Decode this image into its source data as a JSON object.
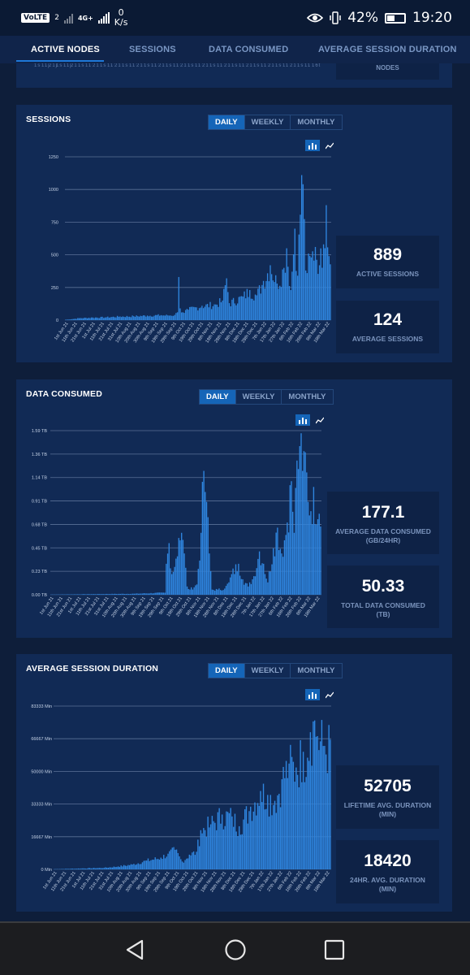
{
  "status_bar": {
    "volte": "VoLTE",
    "sim_badge": "2",
    "network": "4G+",
    "speed_value": "0",
    "speed_unit": "K/s",
    "battery": "42%",
    "time": "19:20"
  },
  "tabs": [
    "ACTIVE NODES",
    "SESSIONS",
    "DATA CONSUMED",
    "AVERAGE SESSION DURATION"
  ],
  "top_card": {
    "tick_labels": [
      "1s",
      "11j",
      "21j",
      "1s",
      "11j",
      "21",
      "1s",
      "11",
      "21",
      "1s",
      "11",
      "21",
      "1s",
      "11",
      "21",
      "1s",
      "11",
      "21",
      "1s",
      "11",
      "21",
      "1s",
      "11",
      "21",
      "1s",
      "11",
      "21",
      "1s",
      "11",
      "21",
      "1s",
      "11",
      "21",
      "1s",
      "11",
      "21",
      "1s",
      "11",
      "16t"
    ],
    "stat_label": "NODES"
  },
  "range_options": [
    "DAILY",
    "WEEKLY",
    "MONTHLY"
  ],
  "panels": {
    "sessions": {
      "title": "SESSIONS",
      "stats": [
        {
          "value": "889",
          "label": "ACTIVE SESSIONS"
        },
        {
          "value": "124",
          "label": "AVERAGE SESSIONS"
        }
      ]
    },
    "data": {
      "title": "DATA CONSUMED",
      "stats": [
        {
          "value": "177.1",
          "label": "AVERAGE DATA CONSUMED (GB/24HR)"
        },
        {
          "value": "50.33",
          "label": "TOTAL DATA CONSUMED (TB)"
        }
      ]
    },
    "duration": {
      "title": "AVERAGE SESSION DURATION",
      "stats": [
        {
          "value": "52705",
          "label": "LIFETIME AVG. DURATION (MIN)"
        },
        {
          "value": "18420",
          "label": "24HR. AVG. DURATION (MIN)"
        }
      ]
    }
  },
  "chart_data": [
    {
      "type": "bar",
      "title": "SESSIONS",
      "x_tick_labels": [
        "1st Jun 21",
        "11th Jun 21",
        "21st Jun 21",
        "1st Jul 21",
        "11th Jul 21",
        "21st Jul 21",
        "31st Jul 21",
        "10th Aug 21",
        "20th Aug 21",
        "30th Aug 21",
        "9th Sep 21",
        "19th Sep 21",
        "29th Sep 21",
        "9th Oct 21",
        "19th Oct 21",
        "29th Oct 21",
        "8th Nov 21",
        "18th Nov 21",
        "28th Nov 21",
        "8th Dec 21",
        "18th Dec 21",
        "28th Dec 21",
        "7th Jan 22",
        "17th Jan 22",
        "27th Jan 22",
        "6th Feb 22",
        "16th Feb 22",
        "26th Feb 22",
        "8th Mar 22",
        "18th Mar 22"
      ],
      "y_ticks": [
        "0",
        "250",
        "500",
        "750",
        "1000",
        "1250"
      ],
      "ylim": [
        0,
        1250
      ],
      "grid": true,
      "anchors": [
        [
          0,
          3
        ],
        [
          5,
          8
        ],
        [
          10,
          15
        ],
        [
          20,
          20
        ],
        [
          30,
          22
        ],
        [
          40,
          28
        ],
        [
          50,
          30
        ],
        [
          60,
          35
        ],
        [
          70,
          38
        ],
        [
          75,
          36
        ],
        [
          80,
          40
        ],
        [
          82,
          60
        ],
        [
          83,
          330
        ],
        [
          84,
          90
        ],
        [
          86,
          60
        ],
        [
          90,
          80
        ],
        [
          100,
          110
        ],
        [
          110,
          120
        ],
        [
          115,
          150
        ],
        [
          118,
          320
        ],
        [
          120,
          130
        ],
        [
          130,
          180
        ],
        [
          135,
          230
        ],
        [
          140,
          190
        ],
        [
          145,
          300
        ],
        [
          150,
          420
        ],
        [
          155,
          280
        ],
        [
          160,
          400
        ],
        [
          162,
          550
        ],
        [
          165,
          230
        ],
        [
          168,
          700
        ],
        [
          170,
          340
        ],
        [
          173,
          1110
        ],
        [
          174,
          1040
        ],
        [
          176,
          380
        ],
        [
          180,
          480
        ],
        [
          183,
          560
        ],
        [
          186,
          420
        ],
        [
          189,
          580
        ],
        [
          191,
          880
        ],
        [
          193,
          490
        ]
      ]
    },
    {
      "type": "bar",
      "title": "DATA CONSUMED",
      "x_tick_labels": [
        "1st Jun 21",
        "11th Jun 21",
        "21st Jun 21",
        "1st Jul 21",
        "11th Jul 21",
        "21st Jul 21",
        "31st Jul 21",
        "10th Aug 21",
        "20th Aug 21",
        "30th Aug 21",
        "9th Sep 21",
        "19th Sep 21",
        "29th Sep 21",
        "9th Oct 21",
        "19th Oct 21",
        "29th Oct 21",
        "8th Nov 21",
        "18th Nov 21",
        "28th Nov 21",
        "8th Dec 21",
        "18th Dec 21",
        "28th Dec 21",
        "7th Jan 22",
        "17th Jan 22",
        "27th Jan 22",
        "6th Feb 22",
        "16th Feb 22",
        "26th Feb 22",
        "8th Mar 22",
        "18th Mar 22"
      ],
      "y_ticks": [
        "0.00 TB",
        "0.23 TB",
        "0.45 TB",
        "0.68 TB",
        "0.91 TB",
        "1.14 TB",
        "1.36 TB",
        "1.59 TB"
      ],
      "ylim": [
        0,
        1.59
      ],
      "grid": true,
      "anchors": [
        [
          0,
          0.002
        ],
        [
          60,
          0.01
        ],
        [
          82,
          0.02
        ],
        [
          83,
          0.3
        ],
        [
          85,
          0.5
        ],
        [
          87,
          0.2
        ],
        [
          90,
          0.35
        ],
        [
          92,
          0.55
        ],
        [
          94,
          0.6
        ],
        [
          96,
          0.4
        ],
        [
          98,
          0.08
        ],
        [
          100,
          0.05
        ],
        [
          105,
          0.1
        ],
        [
          108,
          0.6
        ],
        [
          110,
          1.2
        ],
        [
          112,
          0.9
        ],
        [
          114,
          0.4
        ],
        [
          116,
          0.05
        ],
        [
          120,
          0.05
        ],
        [
          125,
          0.06
        ],
        [
          128,
          0.12
        ],
        [
          130,
          0.2
        ],
        [
          135,
          0.3
        ],
        [
          138,
          0.15
        ],
        [
          142,
          0.08
        ],
        [
          146,
          0.18
        ],
        [
          150,
          0.42
        ],
        [
          153,
          0.3
        ],
        [
          156,
          0.12
        ],
        [
          160,
          0.45
        ],
        [
          163,
          0.65
        ],
        [
          166,
          0.4
        ],
        [
          170,
          0.7
        ],
        [
          173,
          1.1
        ],
        [
          175,
          0.6
        ],
        [
          177,
          1.3
        ],
        [
          179,
          1.44
        ],
        [
          181,
          1.2
        ],
        [
          183,
          1.38
        ],
        [
          185,
          0.9
        ]
      ]
    },
    {
      "type": "bar",
      "title": "AVERAGE SESSION DURATION",
      "x_tick_labels": [
        "1st Jun 21",
        "11th Jun 21",
        "21st Jun 21",
        "1st Jul 21",
        "11th Jul 21",
        "21st Jul 21",
        "31st Jul 21",
        "10th Aug 21",
        "20th Aug 21",
        "30th Aug 21",
        "9th Sep 21",
        "19th Sep 21",
        "29th Sep 21",
        "9th Oct 21",
        "19th Oct 21",
        "29th Oct 21",
        "8th Nov 21",
        "18th Nov 21",
        "28th Nov 21",
        "8th Dec 21",
        "18th Dec 21",
        "28th Dec 21",
        "7th Jan 22",
        "17th Jan 22",
        "27th Jan 22",
        "6th Feb 22",
        "16th Feb 22",
        "26th Feb 22",
        "8th Mar 22",
        "18th Mar 22"
      ],
      "y_ticks": [
        "0 Min",
        "16667 Min",
        "33333 Min",
        "50000 Min",
        "66667 Min",
        "83333 Min"
      ],
      "ylim": [
        0,
        83333
      ],
      "grid": true,
      "anchors": [
        [
          0,
          100
        ],
        [
          20,
          500
        ],
        [
          35,
          800
        ],
        [
          45,
          1500
        ],
        [
          55,
          2500
        ],
        [
          65,
          4500
        ],
        [
          75,
          6000
        ],
        [
          80,
          8000
        ],
        [
          85,
          10000
        ],
        [
          90,
          4000
        ],
        [
          95,
          7500
        ],
        [
          100,
          9000
        ],
        [
          103,
          20000
        ],
        [
          110,
          23000
        ],
        [
          118,
          28000
        ],
        [
          125,
          27000
        ],
        [
          130,
          22000
        ],
        [
          138,
          32000
        ],
        [
          145,
          40000
        ],
        [
          150,
          38000
        ],
        [
          155,
          35000
        ],
        [
          160,
          46000
        ],
        [
          165,
          54000
        ],
        [
          170,
          52000
        ],
        [
          175,
          60000
        ],
        [
          178,
          57000
        ],
        [
          180,
          70000
        ],
        [
          183,
          76000
        ],
        [
          185,
          68000
        ],
        [
          190,
          63000
        ]
      ]
    }
  ]
}
